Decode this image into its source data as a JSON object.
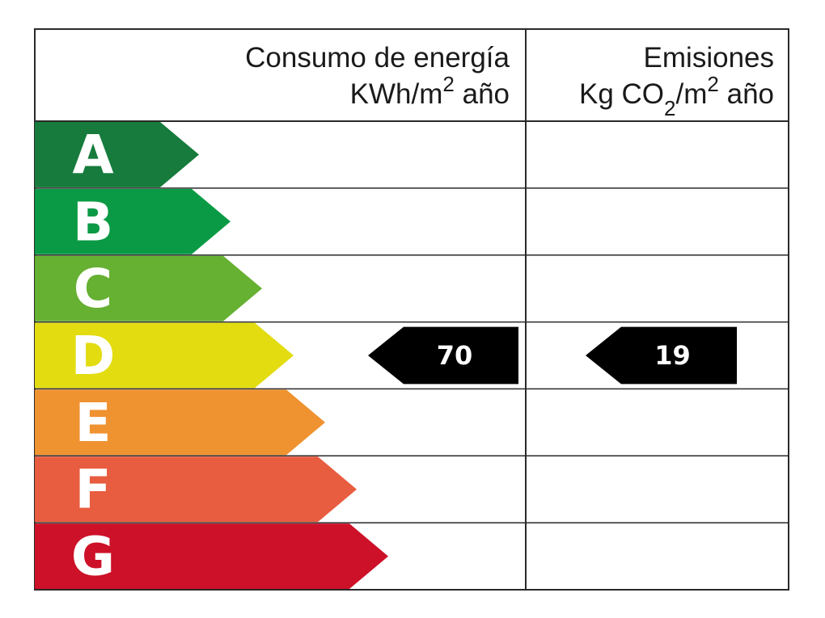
{
  "header": {
    "energy": {
      "line1": "Consumo de energía",
      "unit_prefix": "KWh/m",
      "unit_exp": "2",
      "unit_suffix": " año"
    },
    "emissions": {
      "line1": "Emisiones",
      "unit_prefix": "Kg CO",
      "unit_sub": "2",
      "unit_mid": "/m",
      "unit_exp": "2",
      "unit_suffix": " año"
    }
  },
  "classes": [
    {
      "letter": "A",
      "color": "#167b3c"
    },
    {
      "letter": "B",
      "color": "#0a9a45"
    },
    {
      "letter": "C",
      "color": "#66b032"
    },
    {
      "letter": "D",
      "color": "#e2dc10"
    },
    {
      "letter": "E",
      "color": "#ef9230"
    },
    {
      "letter": "F",
      "color": "#e85c3f"
    },
    {
      "letter": "G",
      "color": "#cc1128"
    }
  ],
  "rating": {
    "class": "D",
    "energy_value": "70",
    "emissions_value": "19",
    "marker_color": "#000000"
  }
}
